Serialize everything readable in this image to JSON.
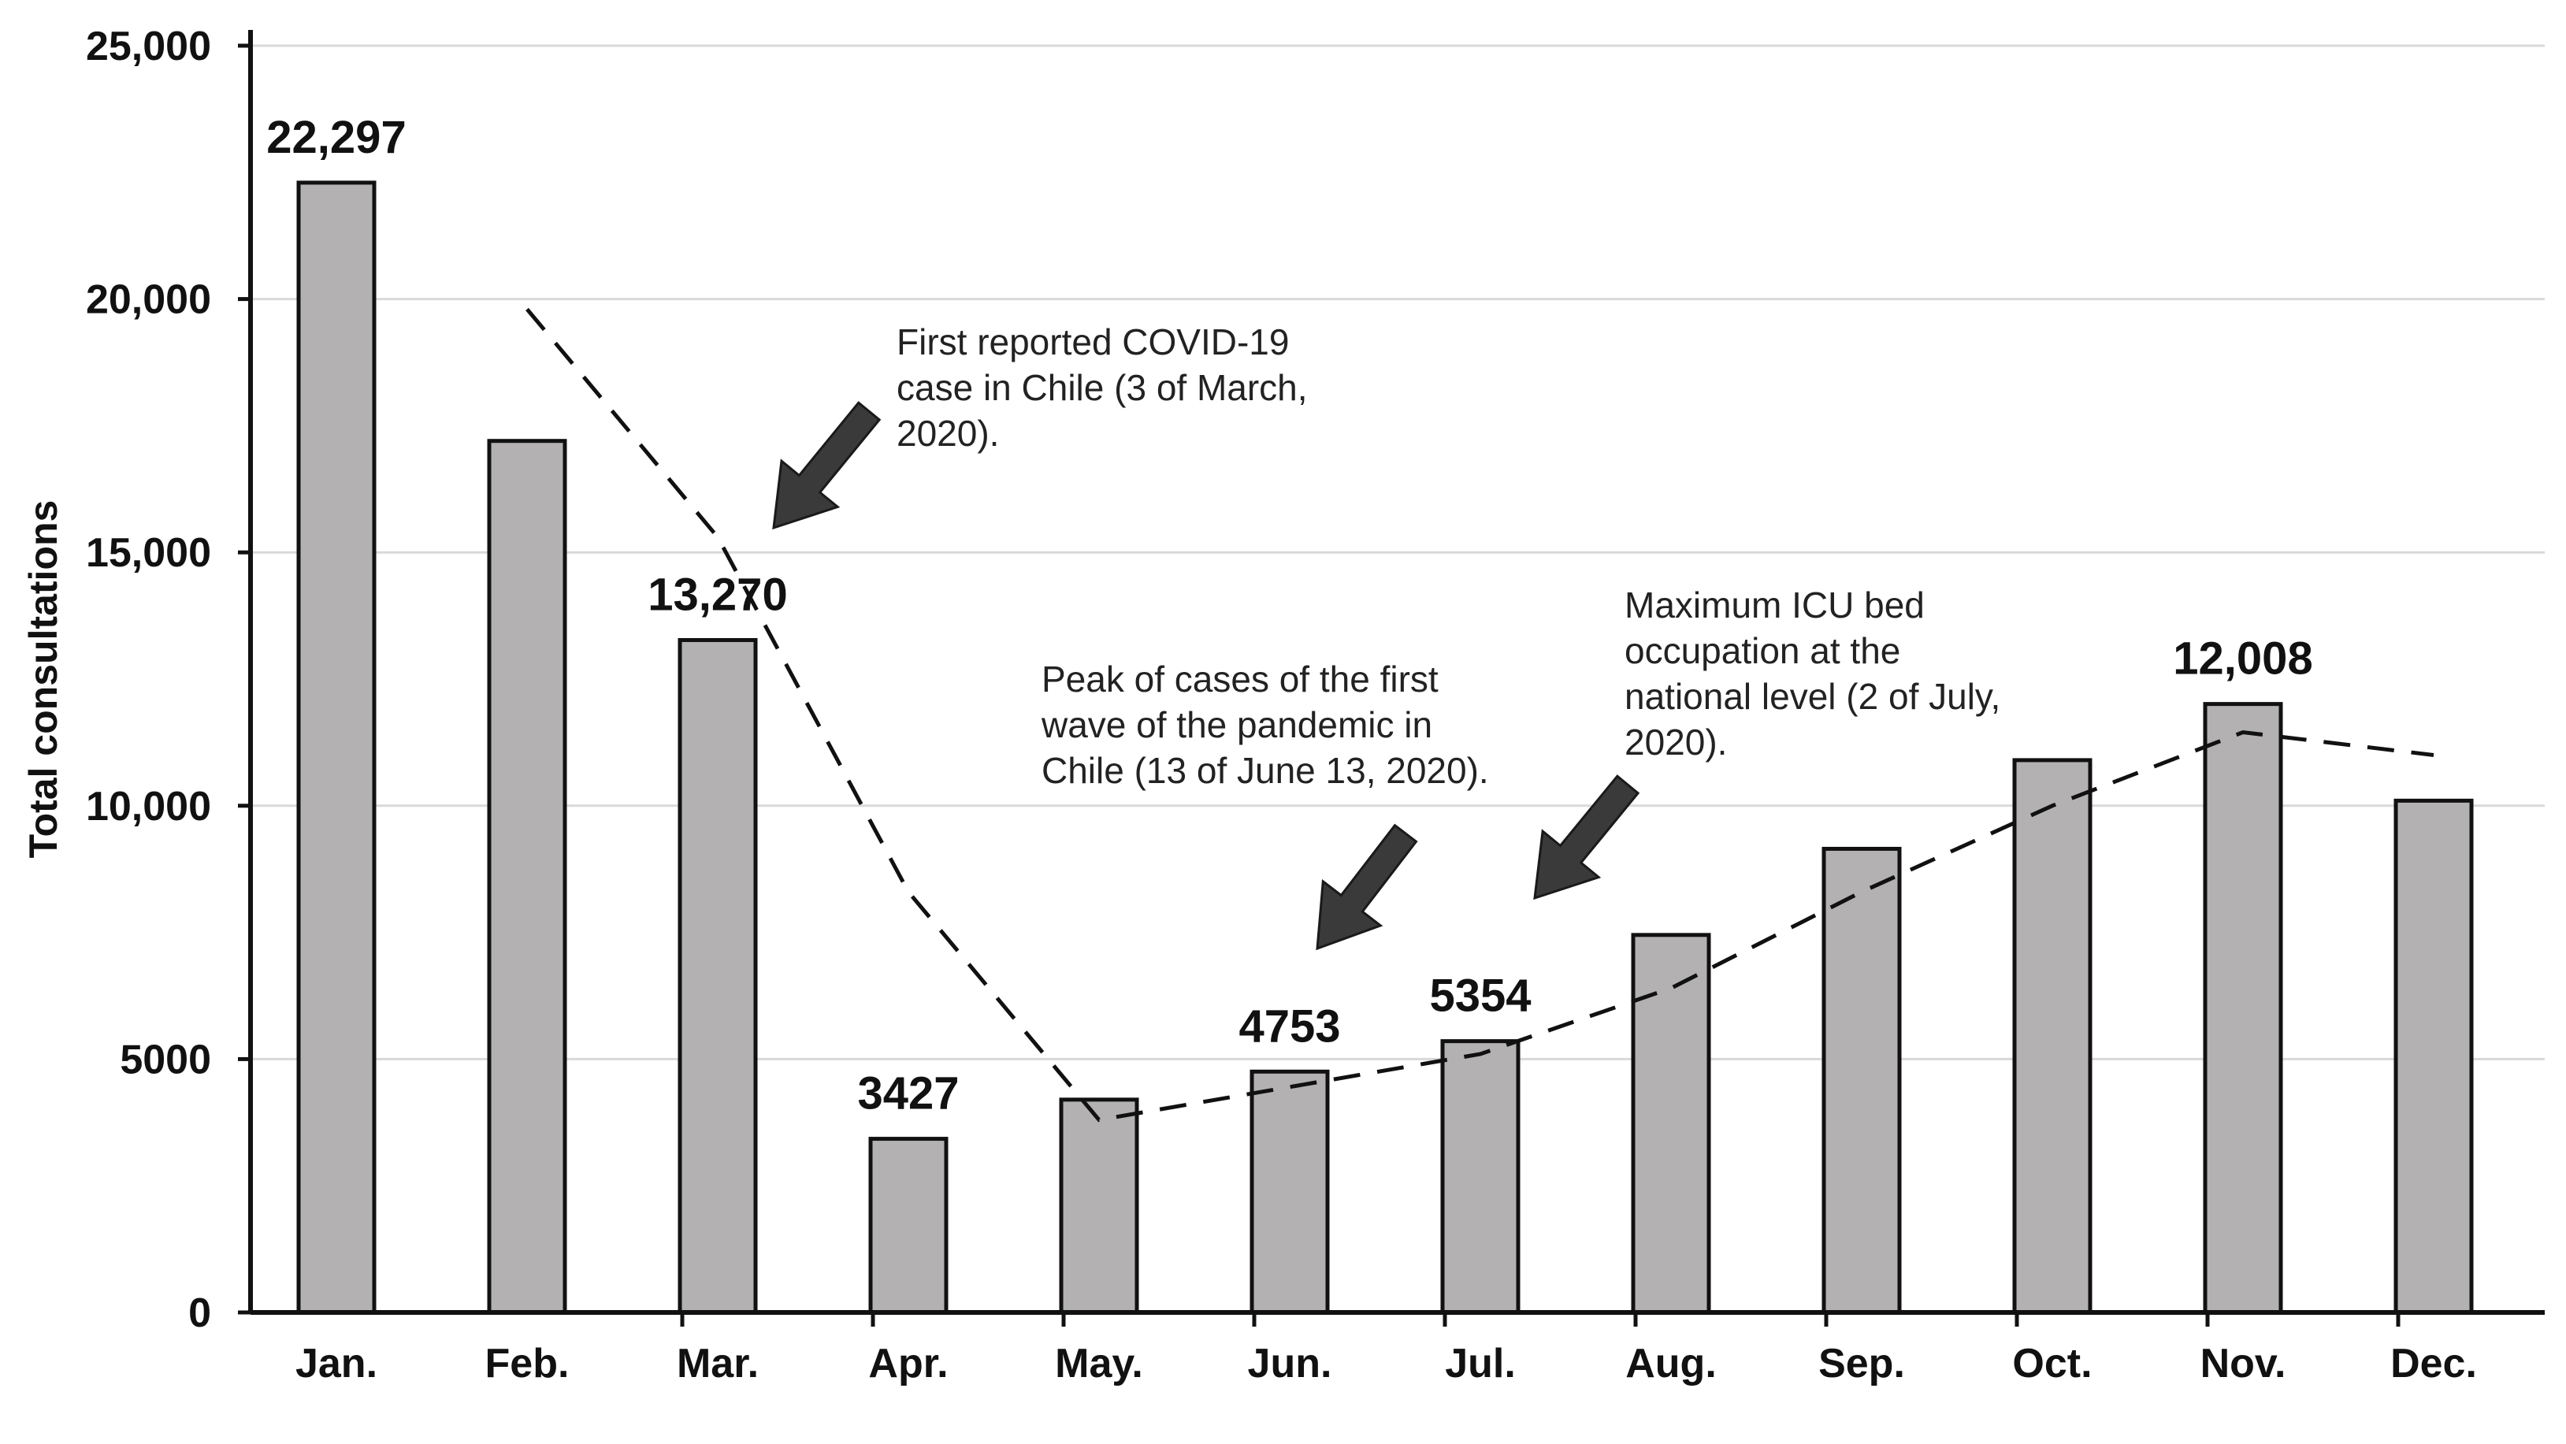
{
  "chart_data": {
    "type": "bar",
    "title": "",
    "xlabel": "",
    "ylabel": "Total consultations",
    "ylim": [
      0,
      25000
    ],
    "yticks": [
      0,
      5000,
      10000,
      15000,
      20000,
      25000
    ],
    "ytick_labels": [
      "0",
      "5000",
      "10,000",
      "15,000",
      "20,000",
      "25,000"
    ],
    "grid": true,
    "categories": [
      "Jan.",
      "Feb.",
      "Mar.",
      "Apr.",
      "May.",
      "Jun.",
      "Jul.",
      "Aug.",
      "Sep.",
      "Oct.",
      "Nov.",
      "Dec."
    ],
    "values": [
      22297,
      17200,
      13270,
      3427,
      4200,
      4753,
      5354,
      7450,
      9150,
      10900,
      12008,
      10100
    ],
    "data_labels": {
      "0": "22,297",
      "2": "13,270",
      "3": "3427",
      "5": "4753",
      "6": "5354",
      "10": "12,008"
    },
    "trend_line": {
      "style": "dashed",
      "x_start": 1,
      "values": [
        19800,
        15300,
        8300,
        3800,
        4450,
        5100,
        6400,
        8300,
        10000,
        11450,
        11000
      ]
    },
    "annotations": [
      {
        "id": "first-case",
        "lines": [
          "First reported COVID-19",
          "case in Chile (3 of March,",
          "2020)."
        ],
        "points_to": "Mar."
      },
      {
        "id": "peak-first-wave",
        "lines": [
          "Peak of cases of the first",
          "wave of the pandemic in",
          "Chile (13 of June 13, 2020)."
        ],
        "points_to": "Jun."
      },
      {
        "id": "max-icu",
        "lines": [
          "Maximum ICU bed",
          "occupation at the",
          "national level (2 of July,",
          "2020)."
        ],
        "points_to": "Jul."
      }
    ],
    "colors": {
      "bar_fill": "#b3b1b1",
      "bar_stroke": "#111111",
      "axis": "#111111",
      "grid": "#d9d9d9",
      "trend": "#111111",
      "arrow": "#3a3a3a"
    }
  }
}
